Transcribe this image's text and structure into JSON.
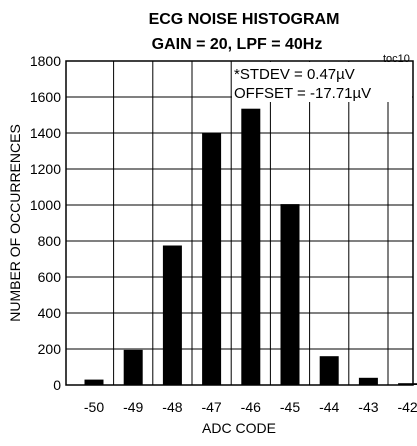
{
  "chart_data": {
    "type": "bar",
    "title": "ECG NOISE HISTOGRAM",
    "subtitle": "GAIN = 20, LPF = 40Hz",
    "figure_tag": "toc10",
    "xlabel": "ADC CODE",
    "ylabel": "NUMBER OF OCCURRENCES",
    "categories": [
      "-50",
      "-49",
      "-48",
      "-47",
      "-46",
      "-45",
      "-44",
      "-43",
      "-42"
    ],
    "values": [
      30,
      195,
      775,
      1400,
      1535,
      1005,
      160,
      40,
      10
    ],
    "ylim": [
      0,
      1800
    ],
    "yticks": [
      0,
      200,
      400,
      600,
      800,
      1000,
      1200,
      1400,
      1600,
      1800
    ],
    "ytick_labels": [
      "0",
      "200",
      "400",
      "600",
      "800",
      "1000",
      "1200",
      "1400",
      "1600",
      "1800"
    ],
    "grid": true,
    "annotations": [
      "*STDEV = 0.47µV",
      "OFFSET = -17.71µV"
    ],
    "bar_color": "#000000",
    "grid_color": "#000000"
  }
}
